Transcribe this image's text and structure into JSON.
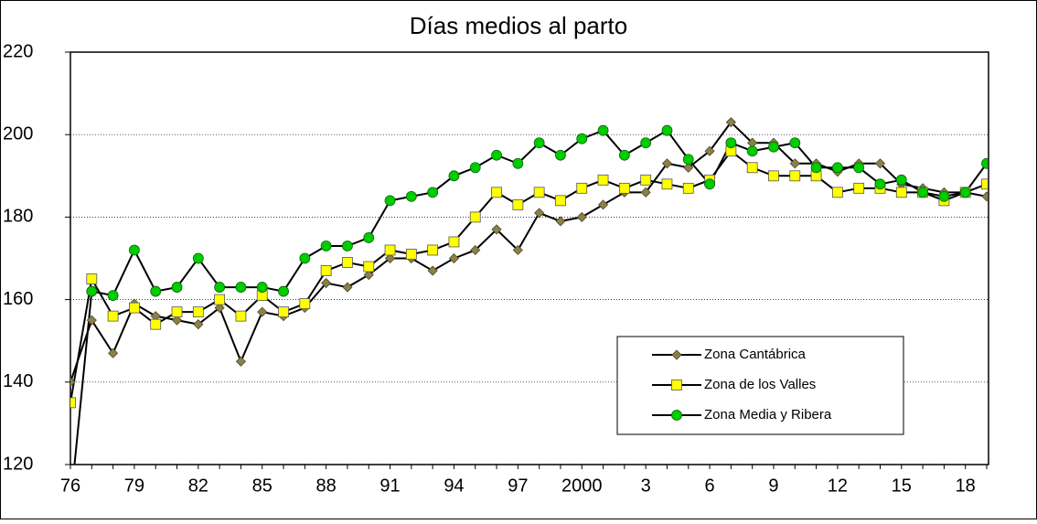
{
  "chart_data": {
    "type": "line",
    "title": "Días medios al parto",
    "categories": [
      "76",
      null,
      null,
      "79",
      null,
      null,
      "82",
      null,
      null,
      "85",
      null,
      null,
      "88",
      null,
      null,
      "91",
      null,
      null,
      "94",
      null,
      null,
      "97",
      null,
      null,
      "2000",
      null,
      null,
      "3",
      null,
      null,
      "6",
      null,
      null,
      "9",
      null,
      null,
      "12",
      null,
      null,
      "15",
      null,
      null,
      "18",
      null
    ],
    "series": [
      {
        "name": "Zona Cantábrica",
        "color": "#8c8046",
        "marker": "diamond",
        "values": [
          140,
          155,
          147,
          159,
          156,
          155,
          154,
          158,
          145,
          157,
          156,
          158,
          164,
          163,
          166,
          170,
          170,
          167,
          170,
          172,
          177,
          172,
          181,
          179,
          180,
          183,
          186,
          186,
          193,
          192,
          196,
          203,
          198,
          198,
          193,
          193,
          191,
          193,
          193,
          188,
          187,
          186,
          186,
          185
        ]
      },
      {
        "name": "Zona de los Valles",
        "color": "#ffff00",
        "marker": "square",
        "values": [
          135,
          165,
          156,
          158,
          154,
          157,
          157,
          160,
          156,
          161,
          157,
          159,
          167,
          169,
          168,
          172,
          171,
          172,
          174,
          180,
          186,
          183,
          186,
          184,
          187,
          189,
          187,
          189,
          188,
          187,
          189,
          196,
          192,
          190,
          190,
          190,
          186,
          187,
          187,
          186,
          186,
          184,
          186,
          188
        ]
      },
      {
        "name": "Zona Media y Ribera",
        "color": "#00cc00",
        "marker": "circle",
        "values": [
          110,
          162,
          161,
          172,
          162,
          163,
          170,
          163,
          163,
          163,
          162,
          170,
          173,
          173,
          175,
          184,
          185,
          186,
          190,
          192,
          195,
          193,
          198,
          195,
          199,
          201,
          195,
          198,
          201,
          194,
          188,
          198,
          196,
          197,
          198,
          192,
          192,
          192,
          188,
          189,
          186,
          185,
          186,
          193
        ]
      }
    ],
    "ylim": [
      120,
      220
    ],
    "yticks": [
      120,
      140,
      160,
      180,
      200,
      220
    ],
    "grid": true
  }
}
